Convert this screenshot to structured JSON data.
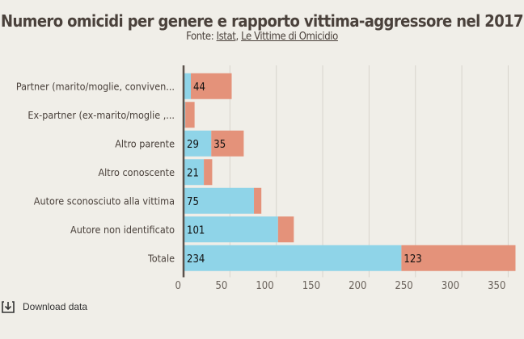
{
  "title": "Numero omicidi per genere e rapporto vittima-aggressore nel 2017",
  "source": {
    "prefix": "Fonte: ",
    "link1": "Istat",
    "sep": ", ",
    "link2": "Le Vittime di Omicidio"
  },
  "download_label": "Download data",
  "chart_data": {
    "type": "bar",
    "orientation": "horizontal",
    "stacked": true,
    "title": "Numero omicidi per genere e rapporto vittima-aggressore nel 2017",
    "categories": [
      "Partner (marito/moglie, conviven...",
      "Ex-partner (ex-marito/moglie ,...",
      "Altro parente",
      "Altro conoscente",
      "Autore sconosciuto alla vittima",
      "Autore non identificato",
      "Totale"
    ],
    "series": [
      {
        "values": [
          7,
          1,
          29,
          21,
          75,
          101,
          234
        ],
        "color": "#8fd4e8",
        "labels": [
          null,
          null,
          "29",
          "21",
          "75",
          "101",
          "234"
        ]
      },
      {
        "values": [
          44,
          10,
          35,
          9,
          8,
          17,
          123
        ],
        "color": "#e4927a",
        "labels": [
          "44",
          null,
          "35",
          null,
          null,
          null,
          "123"
        ]
      }
    ],
    "xlim": [
      0,
      360
    ],
    "xticks": [
      0,
      50,
      100,
      150,
      200,
      250,
      300,
      350
    ],
    "grid": true,
    "legend": "none"
  }
}
